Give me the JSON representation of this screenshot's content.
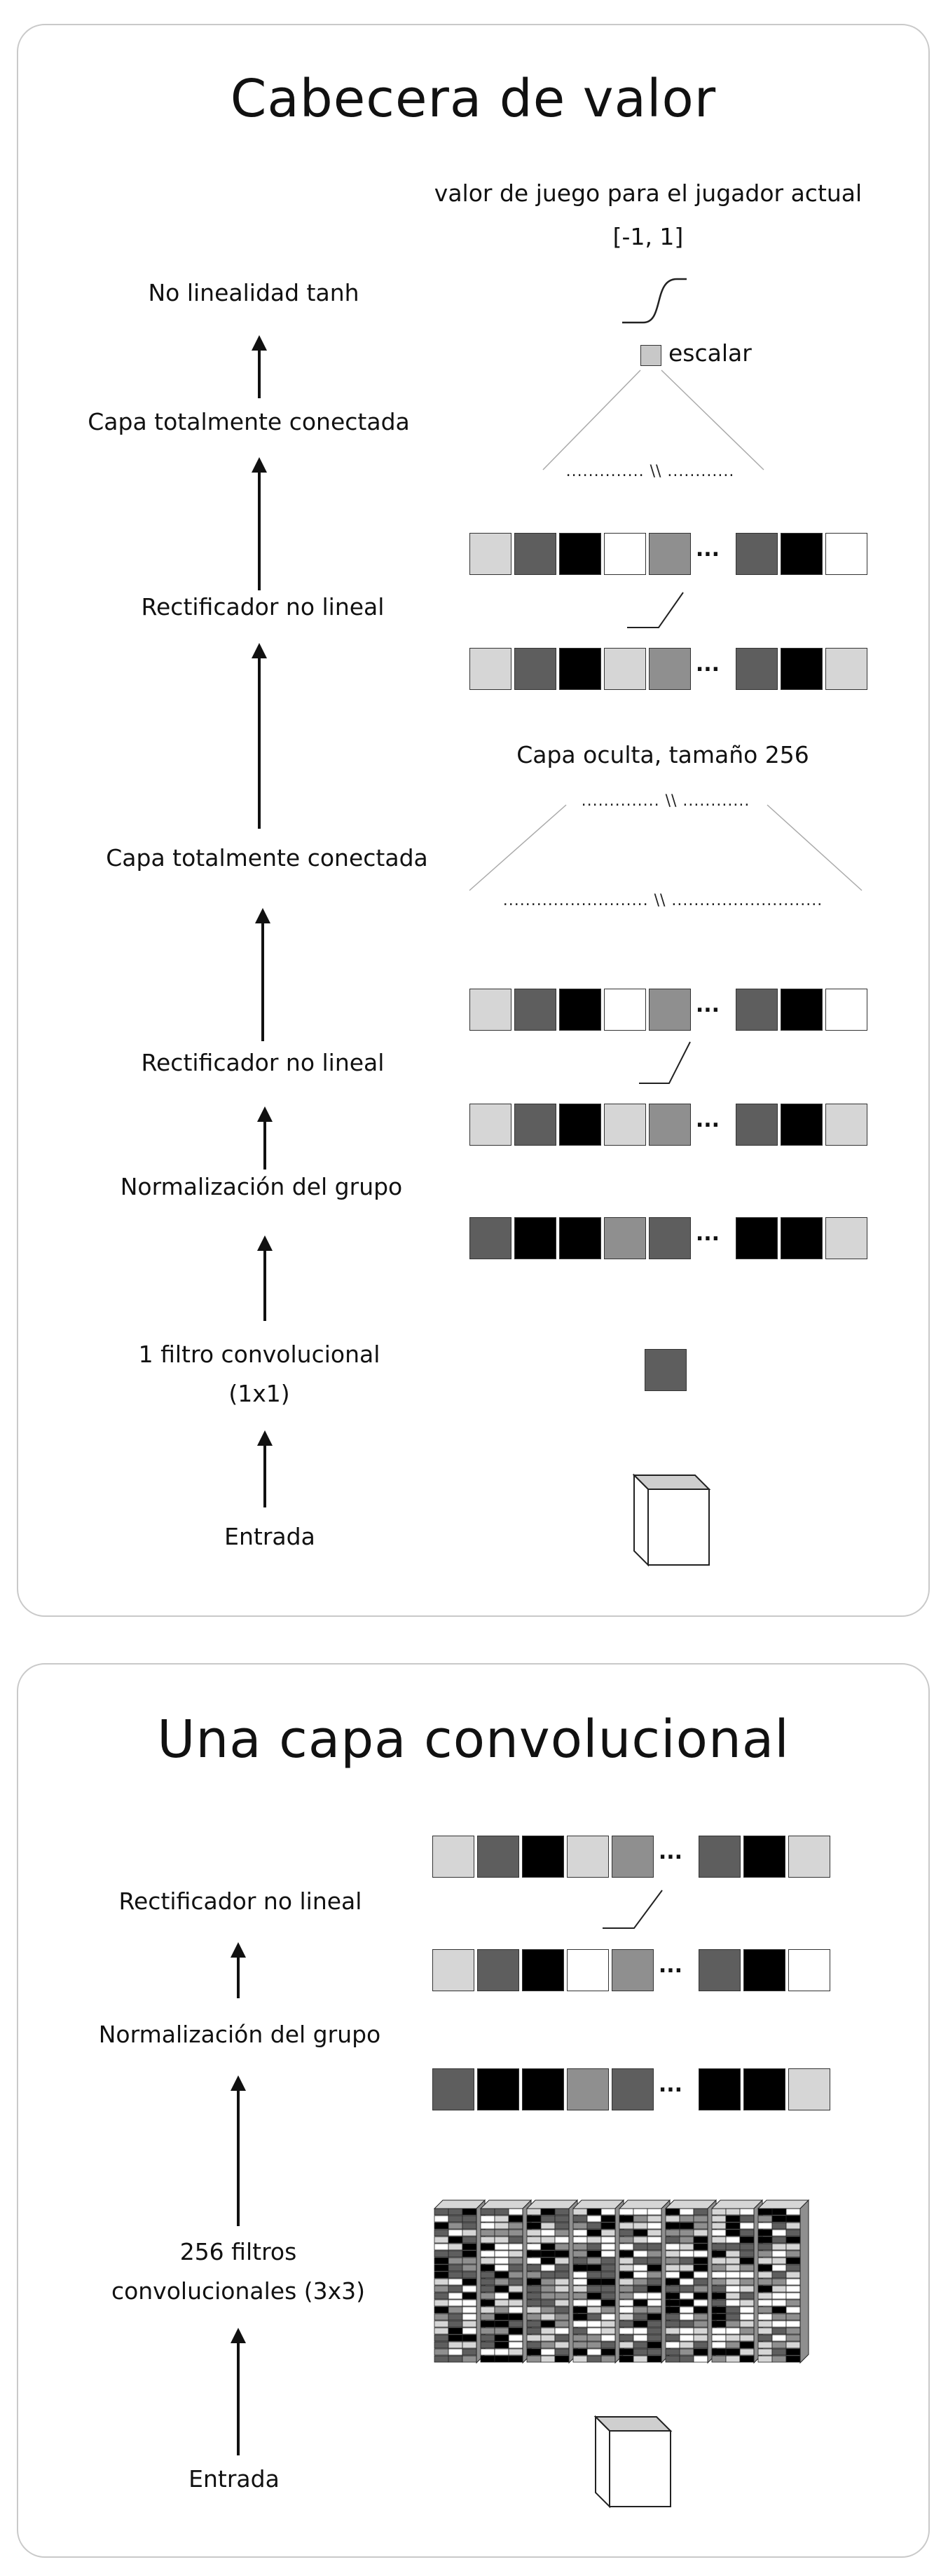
{
  "panel1": {
    "title": "Cabecera de valor",
    "left_labels": {
      "tanh": "No linealidad tanh",
      "fc_top": "Capa totalmente conectada",
      "relu_top": "Rectificador no lineal",
      "fc_mid": "Capa totalmente conectada",
      "relu_bottom": "Rectificador no lineal",
      "batchnorm": "Normalización del grupo",
      "conv_line1": "1 filtro convolucional",
      "conv_line2": "(1x1)",
      "input": "Entrada"
    },
    "right_labels": {
      "game_value": "valor de juego para el jugador actual",
      "range": "[-1, 1]",
      "scalar": "escalar",
      "hidden_layer": "Capa oculta, tamaño 256"
    },
    "dots": {
      "top": "..............  \\\\  ............",
      "hidden": "..............  \\\\  ............",
      "wide": "..........................  \\\\  ..........................."
    },
    "ellipsis": "..."
  },
  "panel2": {
    "title": "Una capa convolucional",
    "left_labels": {
      "relu": "Rectificador no lineal",
      "batchnorm": "Normalización del grupo",
      "filters_line1": "256 filtros",
      "filters_line2": "convolucionales (3x3)",
      "input": "Entrada"
    },
    "ellipsis": "..."
  },
  "colors": {
    "light_gray": "#d6d6d6",
    "mid_gray": "#8f8f8f",
    "dark_gray": "#5e5e5e",
    "black": "#000000",
    "white": "#ffffff",
    "panel_border": "#c9c9c9"
  },
  "rows": {
    "p1_relu_top_out": [
      "light_gray",
      "dark_gray",
      "black",
      "white",
      "mid_gray",
      "dark_gray",
      "black",
      "white"
    ],
    "p1_relu_top_in": [
      "light_gray",
      "dark_gray",
      "black",
      "light_gray",
      "mid_gray",
      "dark_gray",
      "black",
      "light_gray"
    ],
    "p1_relu_bot_out": [
      "light_gray",
      "dark_gray",
      "black",
      "white",
      "mid_gray",
      "dark_gray",
      "black",
      "white"
    ],
    "p1_relu_bot_in": [
      "light_gray",
      "dark_gray",
      "black",
      "light_gray",
      "mid_gray",
      "dark_gray",
      "black",
      "light_gray"
    ],
    "p1_bn": [
      "dark_gray",
      "black",
      "black",
      "mid_gray",
      "dark_gray",
      "black",
      "black",
      "light_gray"
    ],
    "p2_relu_out": [
      "light_gray",
      "dark_gray",
      "black",
      "light_gray",
      "mid_gray",
      "dark_gray",
      "black",
      "light_gray"
    ],
    "p2_relu_in": [
      "light_gray",
      "dark_gray",
      "black",
      "white",
      "mid_gray",
      "dark_gray",
      "black",
      "white"
    ],
    "p2_bn": [
      "dark_gray",
      "black",
      "black",
      "mid_gray",
      "dark_gray",
      "black",
      "black",
      "light_gray"
    ]
  }
}
